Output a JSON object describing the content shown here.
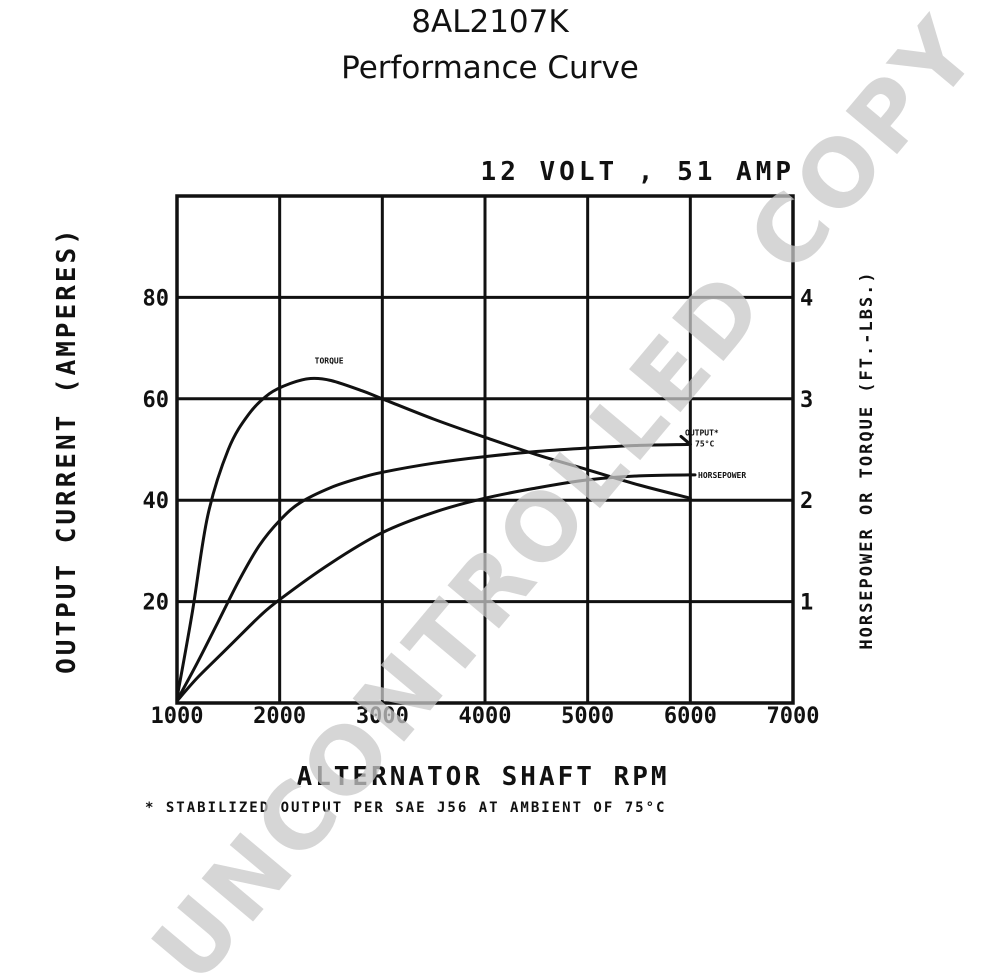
{
  "header": {
    "part_number": "8AL2107K",
    "title": "Performance Curve"
  },
  "watermark": "UNCONTROLLED COPY",
  "chart_data": {
    "type": "line",
    "subtitle": "12 VOLT , 51 AMP",
    "xlabel": "ALTERNATOR SHAFT RPM",
    "ylabel_left": "OUTPUT CURRENT (AMPERES)",
    "ylabel_right": "HORSEPOWER OR TORQUE (FT.-LBS.)",
    "footnote": "* STABILIZED OUTPUT PER SAE J56 AT AMBIENT OF 75°C",
    "xlim": [
      1000,
      7000
    ],
    "ylim_left": [
      0,
      100
    ],
    "ylim_right": [
      0,
      5
    ],
    "grid": true,
    "x_ticks": [
      "1000",
      "2000",
      "3000",
      "4000",
      "5000",
      "6000",
      "7000"
    ],
    "y_ticks_left": [
      "20",
      "40",
      "60",
      "80"
    ],
    "y_ticks_right": [
      "1",
      "2",
      "3",
      "4"
    ],
    "series": [
      {
        "name": "TORQUE",
        "axis": "right",
        "x": [
          1000,
          1150,
          1300,
          1500,
          1700,
          1900,
          2100,
          2300,
          2500,
          2800,
          3000,
          3500,
          4000,
          4500,
          5000,
          5500,
          6000
        ],
        "values": [
          0.05,
          0.9,
          1.85,
          2.5,
          2.85,
          3.05,
          3.15,
          3.2,
          3.18,
          3.08,
          3.0,
          2.8,
          2.62,
          2.45,
          2.3,
          2.15,
          2.02
        ]
      },
      {
        "name": "OUTPUT*",
        "label_line2": "75°C",
        "axis": "left",
        "x": [
          1000,
          1200,
          1400,
          1600,
          1800,
          2000,
          2200,
          2500,
          2800,
          3000,
          3500,
          4000,
          4500,
          5000,
          5500,
          6000
        ],
        "values": [
          0.5,
          8,
          16,
          24,
          31,
          36,
          39.5,
          42.5,
          44.5,
          45.5,
          47.3,
          48.6,
          49.6,
          50.3,
          50.8,
          51
        ]
      },
      {
        "name": "HORSEPOWER",
        "axis": "right",
        "x": [
          1000,
          1200,
          1500,
          1800,
          2000,
          2500,
          3000,
          3500,
          4000,
          4500,
          5000,
          5500,
          6000
        ],
        "values": [
          0.02,
          0.25,
          0.55,
          0.85,
          1.02,
          1.38,
          1.68,
          1.88,
          2.02,
          2.12,
          2.2,
          2.24,
          2.25
        ]
      }
    ]
  }
}
